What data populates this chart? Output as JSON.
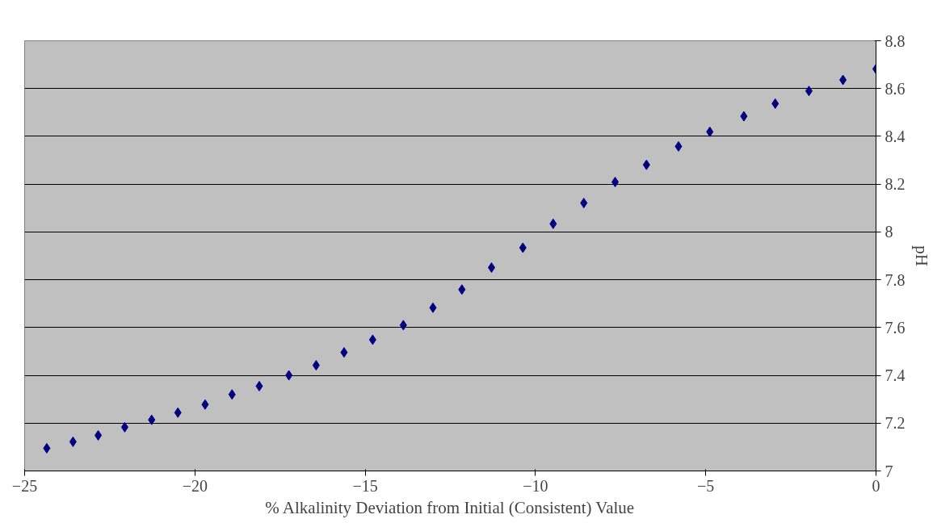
{
  "chart_data": {
    "type": "scatter",
    "xlabel": "% Alkalinity Deviation from Initial (Consistent) Value",
    "ylabel": "pH",
    "x": [
      -24.35,
      -23.58,
      -22.84,
      -22.06,
      -21.27,
      -20.5,
      -19.7,
      -18.91,
      -18.11,
      -17.24,
      -16.44,
      -15.62,
      -14.78,
      -13.88,
      -13.01,
      -12.16,
      -11.29,
      -10.37,
      -9.48,
      -8.58,
      -7.66,
      -6.74,
      -5.8,
      -4.88,
      -3.88,
      -2.96,
      -1.97,
      -0.97,
      0
    ],
    "series": [
      {
        "color": "#000080",
        "values": [
          7.095,
          7.122,
          7.149,
          7.183,
          7.214,
          7.244,
          7.278,
          7.32,
          7.355,
          7.4,
          7.442,
          7.496,
          7.549,
          7.61,
          7.683,
          7.759,
          7.851,
          7.934,
          8.034,
          8.121,
          8.209,
          8.281,
          8.358,
          8.419,
          8.484,
          8.537,
          8.59,
          8.636,
          8.682
        ]
      }
    ],
    "xlim": [
      -25,
      0
    ],
    "xticks": [
      -25,
      -20,
      -15,
      -10,
      -5,
      0
    ],
    "ylim": [
      7,
      8.8
    ],
    "yticks": [
      7,
      7.2,
      7.4,
      7.6,
      7.8,
      8,
      8.2,
      8.4,
      8.6,
      8.8
    ],
    "grid": "y",
    "marker": "diamond"
  }
}
